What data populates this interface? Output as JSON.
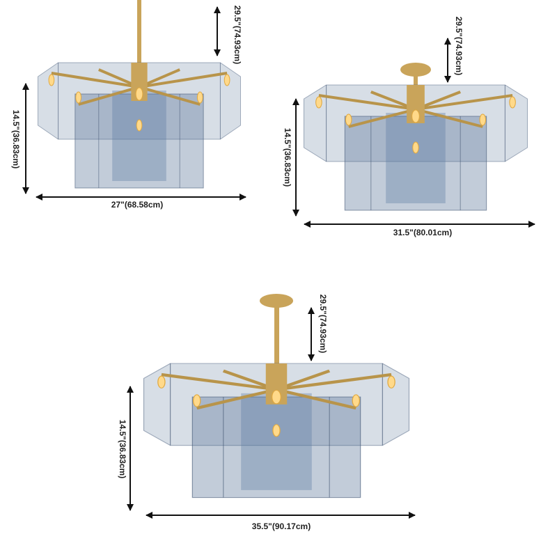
{
  "products": [
    {
      "drop": "29.5\"(74.93cm)",
      "height": "14.5\"(36.83cm)",
      "width": "27\"(68.58cm)"
    },
    {
      "drop": "29.5\"(74.93cm)",
      "height": "14.5\"(36.83cm)",
      "width": "31.5\"(80.01cm)"
    },
    {
      "drop": "29.5\"(74.93cm)",
      "height": "14.5\"(36.83cm)",
      "width": "35.5\"(90.17cm)"
    }
  ]
}
